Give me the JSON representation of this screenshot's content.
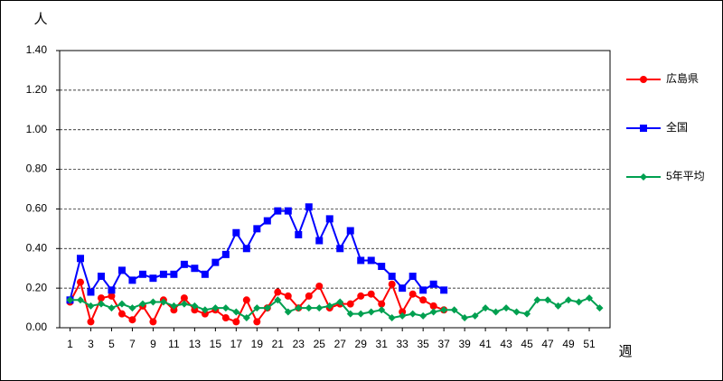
{
  "chart_data": {
    "type": "line",
    "y_label": "人",
    "x_label": "週",
    "x": [
      1,
      2,
      3,
      4,
      5,
      6,
      7,
      8,
      9,
      10,
      11,
      12,
      13,
      14,
      15,
      16,
      17,
      18,
      19,
      20,
      21,
      22,
      23,
      24,
      25,
      26,
      27,
      28,
      29,
      30,
      31,
      32,
      33,
      34,
      35,
      36,
      37,
      38,
      39,
      40,
      41,
      42,
      43,
      44,
      45,
      46,
      47,
      48,
      49,
      50,
      51,
      52
    ],
    "xlim": [
      0,
      53
    ],
    "xticks": [
      1,
      3,
      5,
      7,
      9,
      11,
      13,
      15,
      17,
      19,
      21,
      23,
      25,
      27,
      29,
      31,
      33,
      35,
      37,
      39,
      41,
      43,
      45,
      47,
      49,
      51
    ],
    "ylim": [
      0,
      1.4
    ],
    "yticks": [
      {
        "value": 0,
        "label": "0.00"
      },
      {
        "value": 0.2,
        "label": "0.20"
      },
      {
        "value": 0.4,
        "label": "0.40"
      },
      {
        "value": 0.6,
        "label": "0.60"
      },
      {
        "value": 0.8,
        "label": "0.80"
      },
      {
        "value": 1.0,
        "label": "1.00"
      },
      {
        "value": 1.2,
        "label": "1.20"
      },
      {
        "value": 1.4,
        "label": "1.40"
      }
    ],
    "grid": true,
    "legend": "right",
    "series": [
      {
        "name": "広島県",
        "color": "#ff0000",
        "marker": "circle",
        "values": [
          0.13,
          0.23,
          0.03,
          0.15,
          0.16,
          0.07,
          0.04,
          0.11,
          0.03,
          0.14,
          0.09,
          0.15,
          0.09,
          0.07,
          0.09,
          0.05,
          0.03,
          0.14,
          0.03,
          0.1,
          0.18,
          0.16,
          0.1,
          0.16,
          0.21,
          0.1,
          0.12,
          0.12,
          0.16,
          0.17,
          0.12,
          0.22,
          0.08,
          0.17,
          0.14,
          0.11,
          0.09,
          null,
          null,
          null,
          null,
          null,
          null,
          null,
          null,
          null,
          null,
          null,
          null,
          null,
          null,
          null
        ]
      },
      {
        "name": "全国",
        "color": "#0000ff",
        "marker": "square",
        "values": [
          0.14,
          0.35,
          0.18,
          0.26,
          0.19,
          0.29,
          0.24,
          0.27,
          0.25,
          0.27,
          0.27,
          0.32,
          0.3,
          0.27,
          0.33,
          0.37,
          0.48,
          0.4,
          0.5,
          0.54,
          0.59,
          0.59,
          0.47,
          0.61,
          0.44,
          0.55,
          0.4,
          0.49,
          0.34,
          0.34,
          0.31,
          0.26,
          0.2,
          0.26,
          0.19,
          0.22,
          0.19,
          null,
          null,
          null,
          null,
          null,
          null,
          null,
          null,
          null,
          null,
          null,
          null,
          null,
          null,
          null
        ]
      },
      {
        "name": "5年平均",
        "color": "#00a050",
        "marker": "diamond",
        "values": [
          0.14,
          0.14,
          0.11,
          0.12,
          0.1,
          0.12,
          0.1,
          0.12,
          0.13,
          0.13,
          0.11,
          0.12,
          0.11,
          0.09,
          0.1,
          0.1,
          0.08,
          0.05,
          0.1,
          0.1,
          0.14,
          0.08,
          0.1,
          0.1,
          0.1,
          0.11,
          0.13,
          0.07,
          0.07,
          0.08,
          0.09,
          0.05,
          0.06,
          0.07,
          0.06,
          0.08,
          0.09,
          0.09,
          0.05,
          0.06,
          0.1,
          0.08,
          0.1,
          0.08,
          0.07,
          0.14,
          0.14,
          0.11,
          0.14,
          0.13,
          0.15,
          0.1
        ]
      }
    ]
  }
}
